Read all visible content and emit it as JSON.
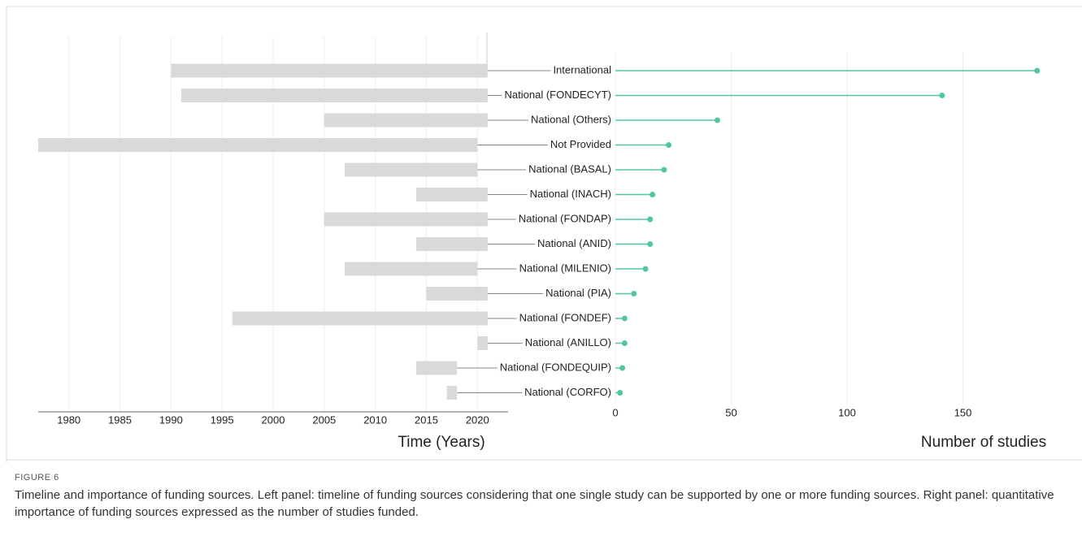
{
  "chart_data": [
    {
      "type": "timeline",
      "x_label": "Time (Years)",
      "categories": [
        "International",
        "National (FONDECYT)",
        "National (Others)",
        "Not Provided",
        "National (BASAL)",
        "National (INACH)",
        "National (FONDAP)",
        "National (ANID)",
        "National (MILENIO)",
        "National (PIA)",
        "National (FONDEF)",
        "National (ANILLO)",
        "National (FONDEQUIP)",
        "National (CORFO)"
      ],
      "starts": [
        1990,
        1991,
        2005,
        1977,
        2007,
        2014,
        2005,
        2014,
        2007,
        2015,
        1996,
        2020,
        2014,
        2017
      ],
      "ends": [
        2021,
        2021,
        2021,
        2020,
        2020,
        2021,
        2021,
        2021,
        2020,
        2021,
        2021,
        2021,
        2018,
        2018
      ],
      "color": "#d9d9d9",
      "xlim": [
        1977,
        2023
      ],
      "xticks": [
        1980,
        1985,
        1990,
        1995,
        2000,
        2005,
        2010,
        2015,
        2020
      ],
      "grid": true
    },
    {
      "type": "lollipop",
      "x_label": "Number of studies",
      "values": [
        182,
        141,
        44,
        23,
        21,
        16,
        15,
        15,
        13,
        8,
        4,
        4,
        3,
        2
      ],
      "color": "#52c79c",
      "xlim": [
        0,
        187
      ],
      "xticks": [
        0,
        50,
        100,
        150
      ],
      "grid": true
    }
  ],
  "figure_label": "FIGURE 6",
  "caption": "Timeline and importance of funding sources. Left panel: timeline of funding sources considering that one single study can be supported by one or more funding sources. Right panel: quantitative importance of funding sources expressed as the number of studies funded."
}
